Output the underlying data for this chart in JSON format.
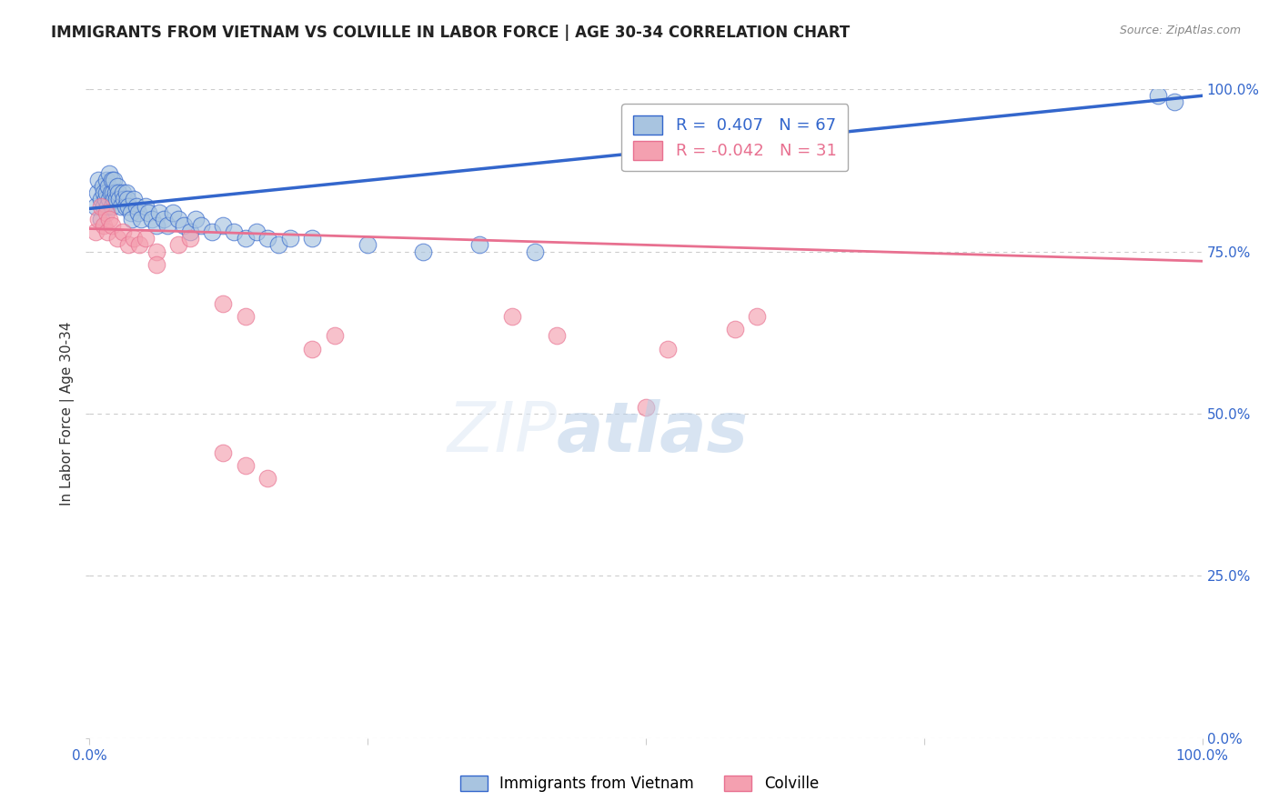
{
  "title": "IMMIGRANTS FROM VIETNAM VS COLVILLE IN LABOR FORCE | AGE 30-34 CORRELATION CHART",
  "source": "Source: ZipAtlas.com",
  "ylabel": "In Labor Force | Age 30-34",
  "xlim": [
    0.0,
    1.0
  ],
  "ylim": [
    0.0,
    1.0
  ],
  "ytick_positions": [
    0.0,
    0.25,
    0.5,
    0.75,
    1.0
  ],
  "ytick_labels": [
    "0.0%",
    "25.0%",
    "50.0%",
    "75.0%",
    "100.0%"
  ],
  "grid_color": "#cccccc",
  "background_color": "#ffffff",
  "vietnam_color": "#a8c4e0",
  "colville_color": "#f4a0b0",
  "vietnam_line_color": "#3366cc",
  "colville_line_color": "#e87090",
  "vietnam_R": 0.407,
  "vietnam_N": 67,
  "colville_R": -0.042,
  "colville_N": 31,
  "legend_labels": [
    "Immigrants from Vietnam",
    "Colville"
  ],
  "vietnam_x": [
    0.005,
    0.007,
    0.008,
    0.01,
    0.01,
    0.012,
    0.013,
    0.013,
    0.014,
    0.015,
    0.015,
    0.016,
    0.017,
    0.018,
    0.018,
    0.019,
    0.02,
    0.02,
    0.021,
    0.022,
    0.022,
    0.023,
    0.024,
    0.025,
    0.026,
    0.027,
    0.028,
    0.03,
    0.031,
    0.032,
    0.033,
    0.034,
    0.035,
    0.037,
    0.038,
    0.04,
    0.042,
    0.044,
    0.046,
    0.05,
    0.053,
    0.056,
    0.06,
    0.063,
    0.067,
    0.07,
    0.075,
    0.08,
    0.085,
    0.09,
    0.095,
    0.1,
    0.11,
    0.12,
    0.13,
    0.14,
    0.15,
    0.16,
    0.17,
    0.18,
    0.2,
    0.25,
    0.3,
    0.35,
    0.4,
    0.96,
    0.975
  ],
  "vietnam_y": [
    0.82,
    0.84,
    0.86,
    0.8,
    0.83,
    0.85,
    0.82,
    0.84,
    0.83,
    0.86,
    0.84,
    0.82,
    0.85,
    0.83,
    0.87,
    0.84,
    0.82,
    0.86,
    0.84,
    0.83,
    0.86,
    0.84,
    0.83,
    0.85,
    0.84,
    0.83,
    0.82,
    0.84,
    0.83,
    0.82,
    0.84,
    0.83,
    0.82,
    0.81,
    0.8,
    0.83,
    0.82,
    0.81,
    0.8,
    0.82,
    0.81,
    0.8,
    0.79,
    0.81,
    0.8,
    0.79,
    0.81,
    0.8,
    0.79,
    0.78,
    0.8,
    0.79,
    0.78,
    0.79,
    0.78,
    0.77,
    0.78,
    0.77,
    0.76,
    0.77,
    0.77,
    0.76,
    0.75,
    0.76,
    0.75,
    0.99,
    0.98
  ],
  "colville_x": [
    0.005,
    0.008,
    0.01,
    0.013,
    0.015,
    0.016,
    0.018,
    0.02,
    0.025,
    0.03,
    0.035,
    0.04,
    0.045,
    0.05,
    0.06,
    0.08,
    0.09,
    0.12,
    0.14,
    0.2,
    0.22,
    0.38,
    0.42,
    0.5,
    0.52,
    0.58,
    0.6,
    0.12,
    0.14,
    0.16,
    0.06
  ],
  "colville_y": [
    0.78,
    0.8,
    0.82,
    0.79,
    0.81,
    0.78,
    0.8,
    0.79,
    0.77,
    0.78,
    0.76,
    0.77,
    0.76,
    0.77,
    0.75,
    0.76,
    0.77,
    0.67,
    0.65,
    0.6,
    0.62,
    0.65,
    0.62,
    0.51,
    0.6,
    0.63,
    0.65,
    0.44,
    0.42,
    0.4,
    0.73
  ],
  "vietnam_trendline_x": [
    0.0,
    1.0
  ],
  "vietnam_trendline_y": [
    0.816,
    0.99
  ],
  "colville_trendline_x": [
    0.0,
    1.0
  ],
  "colville_trendline_y": [
    0.785,
    0.735
  ]
}
